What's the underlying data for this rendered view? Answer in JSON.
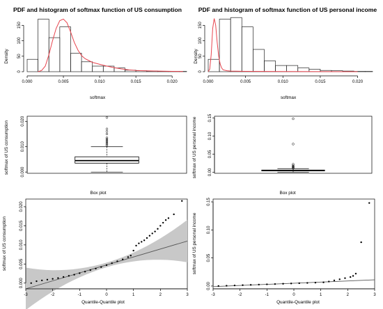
{
  "chart_data": [
    {
      "type": "histogram",
      "title": "PDF and histogram of softmax function of US consumption",
      "xlabel": "softmax",
      "ylabel": "Density",
      "xlim": [
        0,
        0.022
      ],
      "ylim": [
        0,
        180
      ],
      "x_ticks": [
        0.0,
        0.005,
        0.01,
        0.015,
        0.02
      ],
      "x_tick_labels": [
        "0.000",
        "0.005",
        "0.010",
        "0.015",
        "0.020"
      ],
      "y_ticks": [
        0,
        50,
        100,
        150
      ],
      "y_tick_labels": [
        "0",
        "50",
        "100",
        "150"
      ],
      "bins": [
        {
          "x0": 0.0,
          "x1": 0.0015,
          "density": 40
        },
        {
          "x0": 0.0015,
          "x1": 0.003,
          "density": 170
        },
        {
          "x0": 0.003,
          "x1": 0.0045,
          "density": 110
        },
        {
          "x0": 0.0045,
          "x1": 0.006,
          "density": 145
        },
        {
          "x0": 0.006,
          "x1": 0.0075,
          "density": 60
        },
        {
          "x0": 0.0075,
          "x1": 0.009,
          "density": 32
        },
        {
          "x0": 0.009,
          "x1": 0.0105,
          "density": 18
        },
        {
          "x0": 0.0105,
          "x1": 0.012,
          "density": 18
        },
        {
          "x0": 0.012,
          "x1": 0.0135,
          "density": 12
        },
        {
          "x0": 0.0135,
          "x1": 0.015,
          "density": 5
        },
        {
          "x0": 0.015,
          "x1": 0.0165,
          "density": 3
        },
        {
          "x0": 0.0165,
          "x1": 0.018,
          "density": 2
        },
        {
          "x0": 0.018,
          "x1": 0.0195,
          "density": 1
        },
        {
          "x0": 0.0195,
          "x1": 0.021,
          "density": 1
        },
        {
          "x0": 0.021,
          "x1": 0.022,
          "density": 1
        }
      ],
      "pdf_color": "#e8454f",
      "pdf_points": [
        [
          0.0015,
          0
        ],
        [
          0.002,
          4
        ],
        [
          0.0025,
          18
        ],
        [
          0.003,
          55
        ],
        [
          0.0035,
          100
        ],
        [
          0.004,
          140
        ],
        [
          0.0045,
          165
        ],
        [
          0.005,
          170
        ],
        [
          0.0055,
          158
        ],
        [
          0.006,
          128
        ],
        [
          0.0065,
          95
        ],
        [
          0.007,
          70
        ],
        [
          0.0075,
          52
        ],
        [
          0.008,
          42
        ],
        [
          0.0085,
          36
        ],
        [
          0.009,
          30
        ],
        [
          0.0095,
          27
        ],
        [
          0.01,
          24
        ],
        [
          0.011,
          18
        ],
        [
          0.012,
          13
        ],
        [
          0.013,
          9
        ],
        [
          0.014,
          6
        ],
        [
          0.015,
          4
        ],
        [
          0.016,
          3
        ],
        [
          0.018,
          2
        ],
        [
          0.02,
          1
        ],
        [
          0.0215,
          0.5
        ]
      ]
    },
    {
      "type": "histogram",
      "title": "PDF and histogram of softmax function of US personal income",
      "xlabel": "softmax",
      "ylabel": "Density",
      "xlim": [
        0,
        0.022
      ],
      "ylim": [
        0,
        180
      ],
      "x_ticks": [
        0.0,
        0.005,
        0.01,
        0.015,
        0.02
      ],
      "x_tick_labels": [
        "0.000",
        "0.005",
        "0.010",
        "0.015",
        "0.020"
      ],
      "y_ticks": [
        0,
        50,
        100,
        150
      ],
      "y_tick_labels": [
        "0",
        "50",
        "100",
        "150"
      ],
      "bins": [
        {
          "x0": 0.0,
          "x1": 0.0015,
          "density": 40
        },
        {
          "x0": 0.0015,
          "x1": 0.003,
          "density": 170
        },
        {
          "x0": 0.003,
          "x1": 0.0045,
          "density": 175
        },
        {
          "x0": 0.0045,
          "x1": 0.006,
          "density": 145
        },
        {
          "x0": 0.006,
          "x1": 0.0075,
          "density": 72
        },
        {
          "x0": 0.0075,
          "x1": 0.009,
          "density": 35
        },
        {
          "x0": 0.009,
          "x1": 0.0105,
          "density": 20
        },
        {
          "x0": 0.0105,
          "x1": 0.012,
          "density": 20
        },
        {
          "x0": 0.012,
          "x1": 0.0135,
          "density": 12
        },
        {
          "x0": 0.0135,
          "x1": 0.015,
          "density": 8
        },
        {
          "x0": 0.015,
          "x1": 0.0165,
          "density": 4
        },
        {
          "x0": 0.0165,
          "x1": 0.018,
          "density": 3
        },
        {
          "x0": 0.018,
          "x1": 0.0195,
          "density": 2
        },
        {
          "x0": 0.0195,
          "x1": 0.021,
          "density": 1
        },
        {
          "x0": 0.021,
          "x1": 0.022,
          "density": 1
        }
      ],
      "pdf_color": "#e8454f",
      "pdf_points": [
        [
          0.0,
          0
        ],
        [
          0.0002,
          8
        ],
        [
          0.0004,
          55
        ],
        [
          0.0006,
          140
        ],
        [
          0.0008,
          172
        ],
        [
          0.001,
          150
        ],
        [
          0.0012,
          95
        ],
        [
          0.0014,
          50
        ],
        [
          0.0016,
          25
        ],
        [
          0.0018,
          12
        ],
        [
          0.002,
          6
        ],
        [
          0.0025,
          3
        ],
        [
          0.003,
          2
        ],
        [
          0.005,
          1
        ],
        [
          0.01,
          0.5
        ],
        [
          0.02,
          0
        ]
      ]
    },
    {
      "type": "boxplot",
      "xlabel": "Box plot",
      "ylabel": "softmax of US consumption",
      "ylim": [
        -0.0005,
        0.022
      ],
      "y_ticks": [
        0.0,
        0.01,
        0.02
      ],
      "y_tick_labels": [
        "0.000",
        "0.010",
        "0.020"
      ],
      "min": 0.0,
      "q1": 0.0035,
      "median": 0.0045,
      "q3": 0.006,
      "max": 0.01,
      "outliers": [
        0.0105,
        0.011,
        0.0115,
        0.012,
        0.0125,
        0.013,
        0.0135,
        0.015,
        0.016,
        0.017,
        0.0215
      ]
    },
    {
      "type": "boxplot",
      "xlabel": "Box plot",
      "ylabel": "softmax of US personal income",
      "ylim": [
        -0.003,
        0.155
      ],
      "y_ticks": [
        0.0,
        0.05,
        0.1,
        0.15
      ],
      "y_tick_labels": [
        "0.00",
        "0.05",
        "0.10",
        "0.15"
      ],
      "min": 0.0,
      "q1": 0.0035,
      "median": 0.005,
      "q3": 0.006,
      "max": 0.01,
      "outliers": [
        0.011,
        0.012,
        0.013,
        0.015,
        0.016,
        0.018,
        0.022,
        0.078,
        0.148
      ]
    },
    {
      "type": "qqplot",
      "xlabel": "Quantile-Quantile plot",
      "ylabel": "softmax of US consumption",
      "xlim": [
        -3,
        3
      ],
      "ylim": [
        -0.0015,
        0.022
      ],
      "x_ticks": [
        -3,
        -2,
        -1,
        0,
        1,
        2,
        3
      ],
      "x_tick_labels": [
        "-3",
        "-2",
        "-1",
        "0",
        "1",
        "2",
        "3"
      ],
      "y_ticks": [
        0.0,
        0.005,
        0.01,
        0.015,
        0.02
      ],
      "y_tick_labels": [
        "0.000",
        "0.005",
        "0.010",
        "0.015",
        "0.020"
      ],
      "reference_line": [
        [
          -3,
          -0.0015
        ],
        [
          3,
          0.011
        ]
      ],
      "band_color": "#c8c8c8",
      "points": [
        [
          -2.8,
          0.0
        ],
        [
          -2.6,
          0.0005
        ],
        [
          -2.4,
          0.0007
        ],
        [
          -2.2,
          0.0009
        ],
        [
          -2.0,
          0.0011
        ],
        [
          -1.8,
          0.0013
        ],
        [
          -1.6,
          0.0016
        ],
        [
          -1.4,
          0.0019
        ],
        [
          -1.2,
          0.0022
        ],
        [
          -1.0,
          0.0026
        ],
        [
          -0.8,
          0.003
        ],
        [
          -0.6,
          0.0034
        ],
        [
          -0.4,
          0.0038
        ],
        [
          -0.2,
          0.0042
        ],
        [
          0.0,
          0.0047
        ],
        [
          0.2,
          0.0052
        ],
        [
          0.4,
          0.0057
        ],
        [
          0.6,
          0.0062
        ],
        [
          0.8,
          0.0068
        ],
        [
          0.9,
          0.0072
        ],
        [
          1.0,
          0.0085
        ],
        [
          1.1,
          0.0098
        ],
        [
          1.2,
          0.0104
        ],
        [
          1.3,
          0.0108
        ],
        [
          1.4,
          0.0112
        ],
        [
          1.5,
          0.0118
        ],
        [
          1.6,
          0.0124
        ],
        [
          1.7,
          0.013
        ],
        [
          1.8,
          0.0135
        ],
        [
          1.9,
          0.0142
        ],
        [
          2.0,
          0.015
        ],
        [
          2.1,
          0.0158
        ],
        [
          2.2,
          0.0165
        ],
        [
          2.3,
          0.017
        ],
        [
          2.5,
          0.018
        ],
        [
          2.8,
          0.0215
        ]
      ]
    },
    {
      "type": "qqplot",
      "xlabel": "Quantile-Quantile plot",
      "ylabel": "softmax of US personal income",
      "xlim": [
        -3,
        3
      ],
      "ylim": [
        -0.005,
        0.155
      ],
      "x_ticks": [
        -3,
        -2,
        -1,
        0,
        1,
        2,
        3
      ],
      "x_tick_labels": [
        "-3",
        "-2",
        "-1",
        "0",
        "1",
        "2",
        "3"
      ],
      "y_ticks": [
        0.0,
        0.05,
        0.1,
        0.15
      ],
      "y_tick_labels": [
        "0.00",
        "0.05",
        "0.10",
        "0.15"
      ],
      "reference_line": [
        [
          -3,
          -0.001
        ],
        [
          3,
          0.011
        ]
      ],
      "points": [
        [
          -2.8,
          0.0
        ],
        [
          -2.5,
          0.0005
        ],
        [
          -2.2,
          0.001
        ],
        [
          -1.9,
          0.0015
        ],
        [
          -1.6,
          0.002
        ],
        [
          -1.3,
          0.0025
        ],
        [
          -1.0,
          0.003
        ],
        [
          -0.7,
          0.0035
        ],
        [
          -0.4,
          0.004
        ],
        [
          -0.1,
          0.0045
        ],
        [
          0.2,
          0.005
        ],
        [
          0.5,
          0.0055
        ],
        [
          0.8,
          0.006
        ],
        [
          1.1,
          0.0065
        ],
        [
          1.3,
          0.008
        ],
        [
          1.5,
          0.01
        ],
        [
          1.7,
          0.012
        ],
        [
          1.9,
          0.014
        ],
        [
          2.1,
          0.016
        ],
        [
          2.2,
          0.018
        ],
        [
          2.3,
          0.022
        ],
        [
          2.5,
          0.078
        ],
        [
          2.8,
          0.148
        ]
      ]
    }
  ]
}
